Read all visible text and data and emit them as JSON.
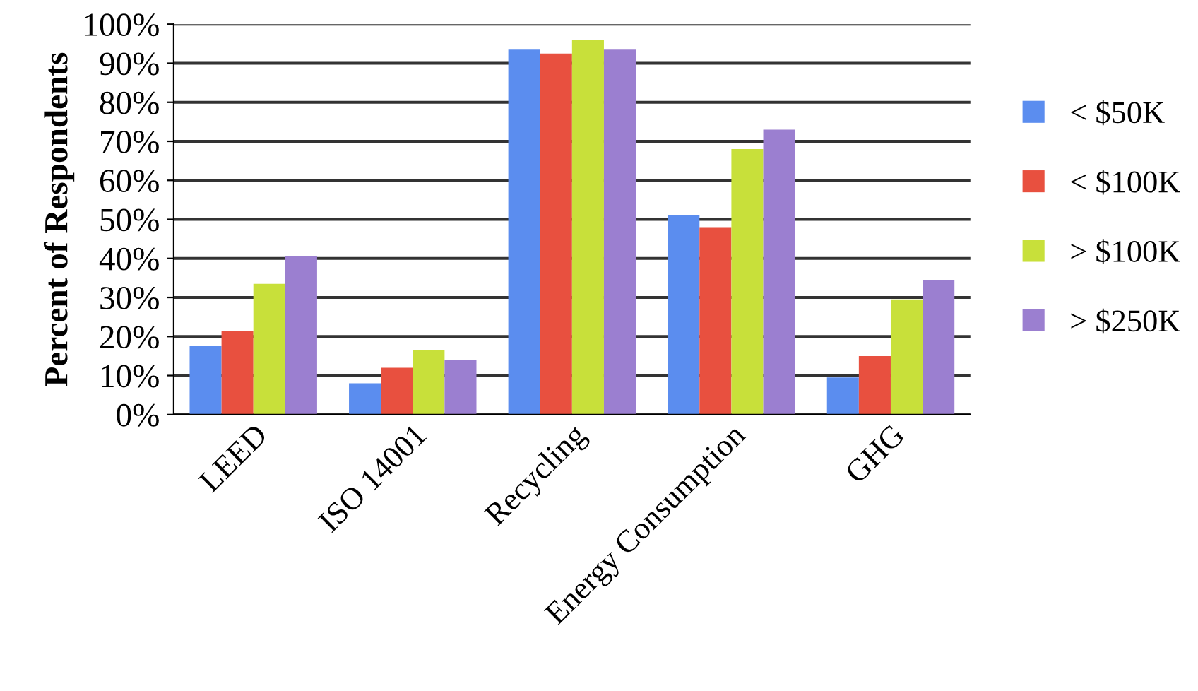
{
  "chart_data": {
    "type": "bar",
    "ylabel": "Percent of Respondents",
    "categories": [
      "LEED",
      "ISO 14001",
      "Recycling",
      "Energy Consumption",
      "GHG"
    ],
    "series": [
      {
        "name": "< $50K",
        "color": "#5b8def",
        "values": [
          17.5,
          8,
          93.5,
          51,
          9.5
        ]
      },
      {
        "name": "< $100K",
        "color": "#e8503f",
        "values": [
          21.5,
          12,
          92.5,
          48,
          15
        ]
      },
      {
        "name": "> $100K",
        "color": "#c8e03a",
        "values": [
          33.5,
          16.5,
          96,
          68,
          29.5
        ]
      },
      {
        "name": "> $250K",
        "color": "#9b7fd0",
        "values": [
          40.5,
          14,
          93.5,
          73,
          34.5
        ]
      }
    ],
    "ylim": [
      0,
      100
    ],
    "yticks": [
      {
        "value": 0,
        "label": "0%"
      },
      {
        "value": 10,
        "label": "10%"
      },
      {
        "value": 20,
        "label": "20%"
      },
      {
        "value": 30,
        "label": "30%"
      },
      {
        "value": 40,
        "label": "40%"
      },
      {
        "value": 50,
        "label": "50%"
      },
      {
        "value": 60,
        "label": "60%"
      },
      {
        "value": 70,
        "label": "70%"
      },
      {
        "value": 80,
        "label": "80%"
      },
      {
        "value": 90,
        "label": "90%"
      },
      {
        "value": 100,
        "label": "100%"
      }
    ],
    "grid": "y",
    "legend": "right"
  }
}
